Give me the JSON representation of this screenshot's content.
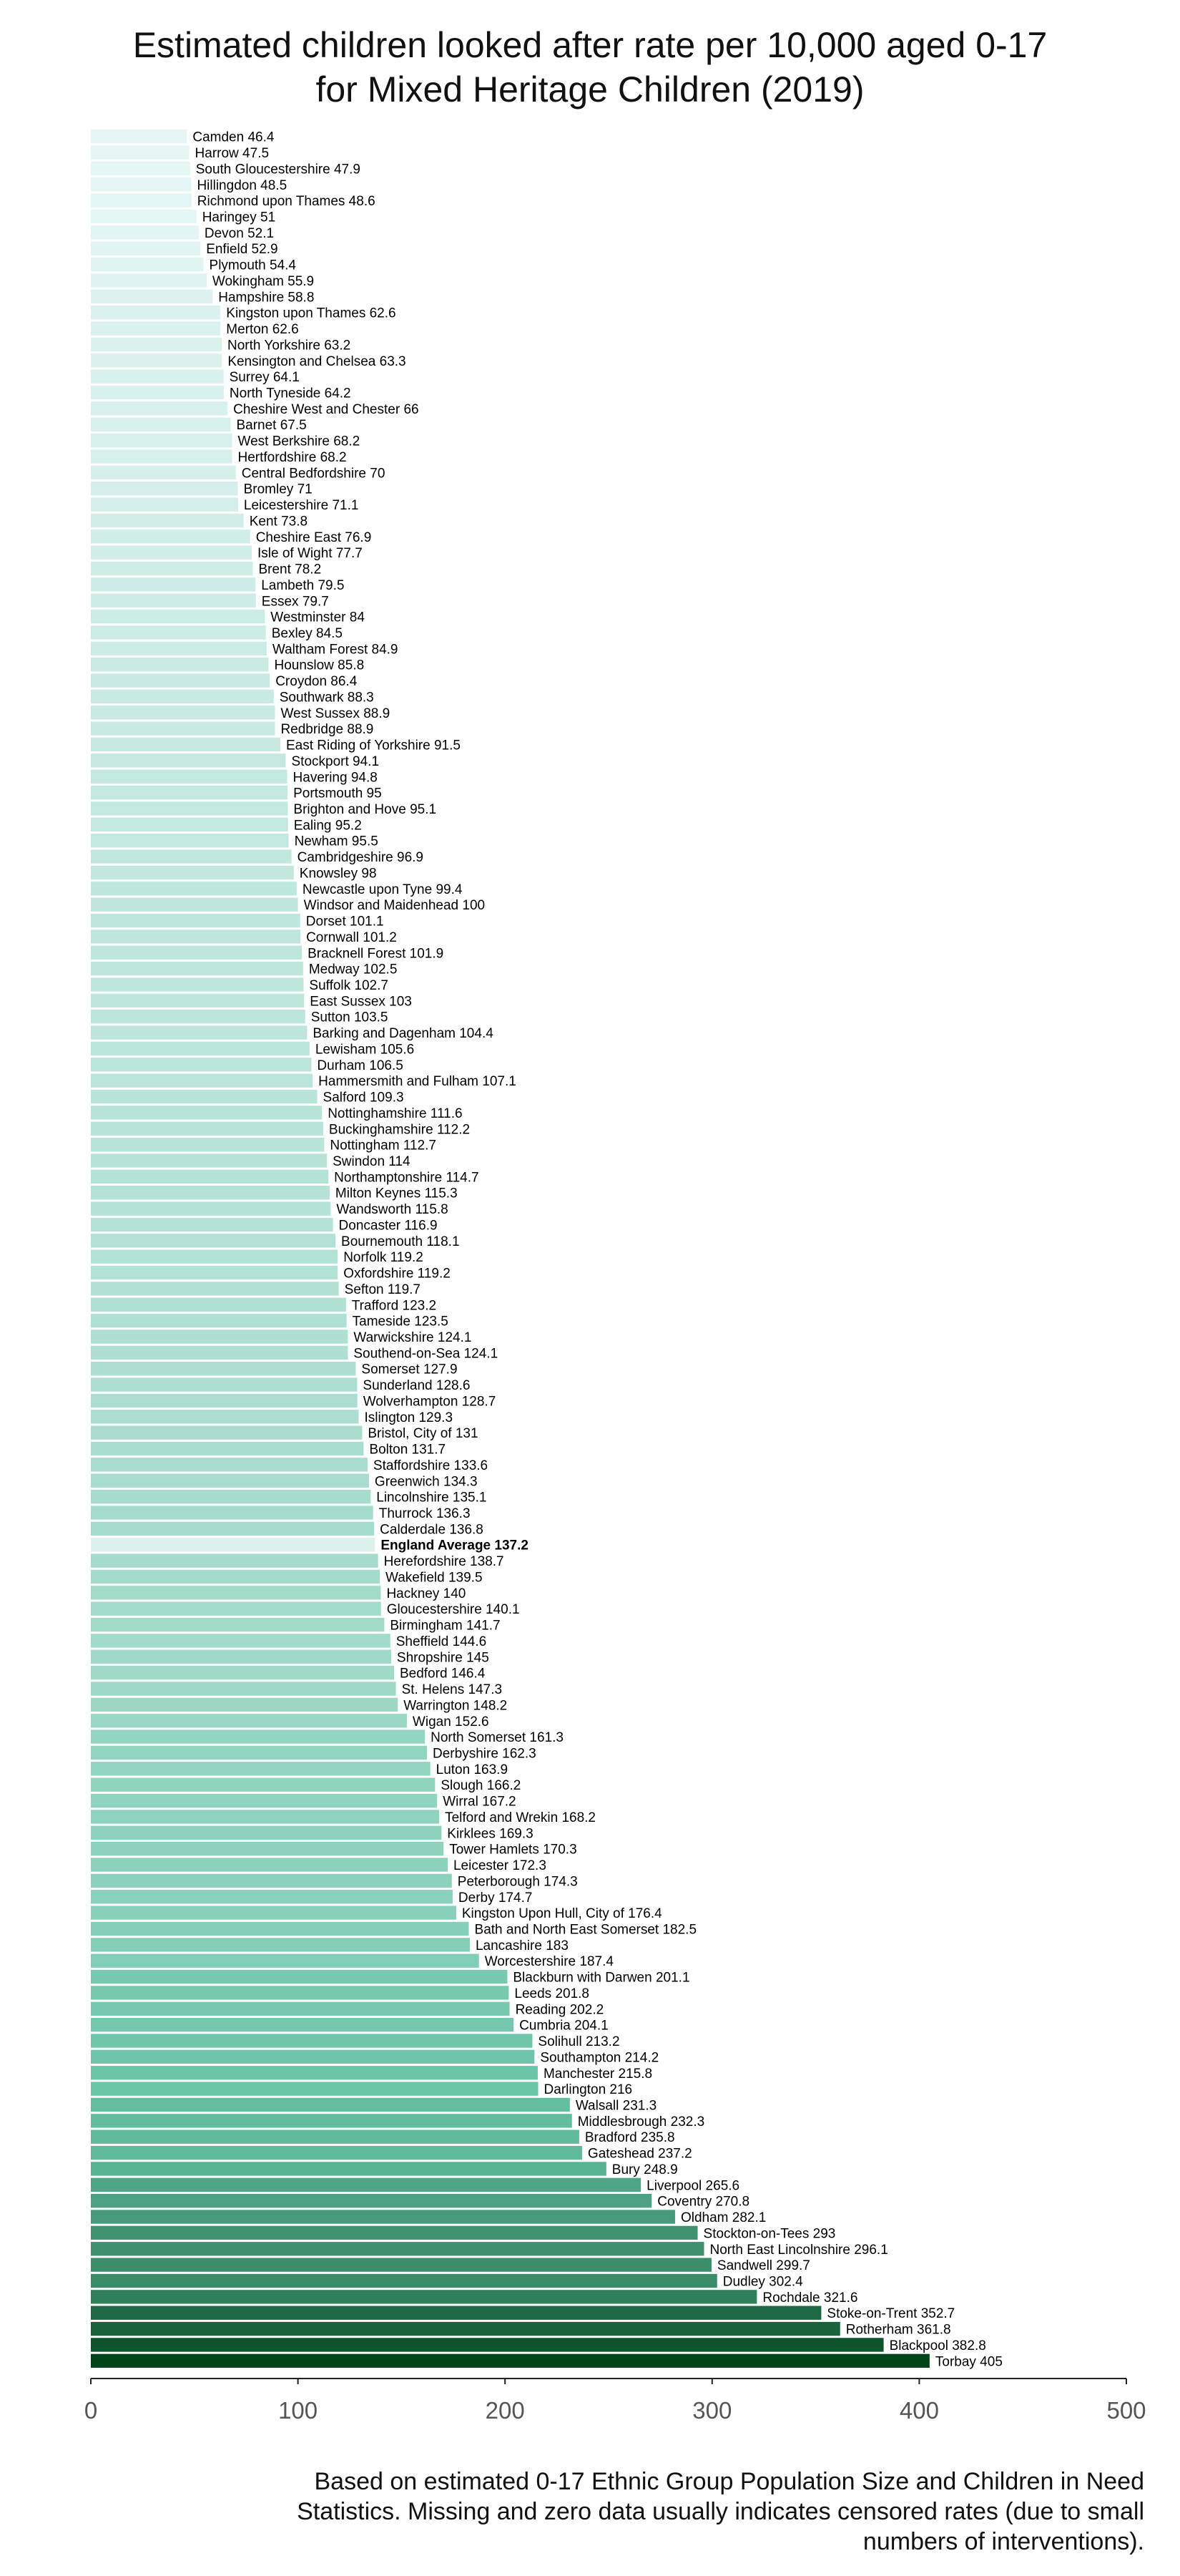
{
  "chart_data": {
    "type": "bar",
    "orientation": "horizontal",
    "title_lines": [
      "Estimated children looked after rate per 10,000 aged 0-17",
      "for Mixed Heritage Children (2019)"
    ],
    "xlim": [
      0,
      500
    ],
    "xticks": [
      "0",
      "100",
      "200",
      "300",
      "400",
      "500"
    ],
    "grid": false,
    "color_scale": {
      "low": "#e6f6f6",
      "high": "#00441b"
    },
    "highlight": "England Average",
    "bars": [
      {
        "label": "Camden",
        "value": 46.4
      },
      {
        "label": "Harrow",
        "value": 47.5
      },
      {
        "label": "South Gloucestershire",
        "value": 47.9
      },
      {
        "label": "Hillingdon",
        "value": 48.5
      },
      {
        "label": "Richmond upon Thames",
        "value": 48.6
      },
      {
        "label": "Haringey",
        "value": 51
      },
      {
        "label": "Devon",
        "value": 52.1
      },
      {
        "label": "Enfield",
        "value": 52.9
      },
      {
        "label": "Plymouth",
        "value": 54.4
      },
      {
        "label": "Wokingham",
        "value": 55.9
      },
      {
        "label": "Hampshire",
        "value": 58.8
      },
      {
        "label": "Kingston upon Thames",
        "value": 62.6
      },
      {
        "label": "Merton",
        "value": 62.6
      },
      {
        "label": "North Yorkshire",
        "value": 63.2
      },
      {
        "label": "Kensington and Chelsea",
        "value": 63.3
      },
      {
        "label": "Surrey",
        "value": 64.1
      },
      {
        "label": "North Tyneside",
        "value": 64.2
      },
      {
        "label": "Cheshire West and Chester",
        "value": 66
      },
      {
        "label": "Barnet",
        "value": 67.5
      },
      {
        "label": "West Berkshire",
        "value": 68.2
      },
      {
        "label": "Hertfordshire",
        "value": 68.2
      },
      {
        "label": "Central Bedfordshire",
        "value": 70
      },
      {
        "label": "Bromley",
        "value": 71
      },
      {
        "label": "Leicestershire",
        "value": 71.1
      },
      {
        "label": "Kent",
        "value": 73.8
      },
      {
        "label": "Cheshire East",
        "value": 76.9
      },
      {
        "label": "Isle of Wight",
        "value": 77.7
      },
      {
        "label": "Brent",
        "value": 78.2
      },
      {
        "label": "Lambeth",
        "value": 79.5
      },
      {
        "label": "Essex",
        "value": 79.7
      },
      {
        "label": "Westminster",
        "value": 84
      },
      {
        "label": "Bexley",
        "value": 84.5
      },
      {
        "label": "Waltham Forest",
        "value": 84.9
      },
      {
        "label": "Hounslow",
        "value": 85.8
      },
      {
        "label": "Croydon",
        "value": 86.4
      },
      {
        "label": "Southwark",
        "value": 88.3
      },
      {
        "label": "West Sussex",
        "value": 88.9
      },
      {
        "label": "Redbridge",
        "value": 88.9
      },
      {
        "label": "East Riding of Yorkshire",
        "value": 91.5
      },
      {
        "label": "Stockport",
        "value": 94.1
      },
      {
        "label": "Havering",
        "value": 94.8
      },
      {
        "label": "Portsmouth",
        "value": 95
      },
      {
        "label": "Brighton and Hove",
        "value": 95.1
      },
      {
        "label": "Ealing",
        "value": 95.2
      },
      {
        "label": "Newham",
        "value": 95.5
      },
      {
        "label": "Cambridgeshire",
        "value": 96.9
      },
      {
        "label": "Knowsley",
        "value": 98
      },
      {
        "label": "Newcastle upon Tyne",
        "value": 99.4
      },
      {
        "label": "Windsor and Maidenhead",
        "value": 100
      },
      {
        "label": "Dorset",
        "value": 101.1
      },
      {
        "label": "Cornwall",
        "value": 101.2
      },
      {
        "label": "Bracknell Forest",
        "value": 101.9
      },
      {
        "label": "Medway",
        "value": 102.5
      },
      {
        "label": "Suffolk",
        "value": 102.7
      },
      {
        "label": "East Sussex",
        "value": 103
      },
      {
        "label": "Sutton",
        "value": 103.5
      },
      {
        "label": "Barking and Dagenham",
        "value": 104.4
      },
      {
        "label": "Lewisham",
        "value": 105.6
      },
      {
        "label": "Durham",
        "value": 106.5
      },
      {
        "label": "Hammersmith and Fulham",
        "value": 107.1
      },
      {
        "label": "Salford",
        "value": 109.3
      },
      {
        "label": "Nottinghamshire",
        "value": 111.6
      },
      {
        "label": "Buckinghamshire",
        "value": 112.2
      },
      {
        "label": "Nottingham",
        "value": 112.7
      },
      {
        "label": "Swindon",
        "value": 114
      },
      {
        "label": "Northamptonshire",
        "value": 114.7
      },
      {
        "label": "Milton Keynes",
        "value": 115.3
      },
      {
        "label": "Wandsworth",
        "value": 115.8
      },
      {
        "label": "Doncaster",
        "value": 116.9
      },
      {
        "label": "Bournemouth",
        "value": 118.1
      },
      {
        "label": "Norfolk",
        "value": 119.2
      },
      {
        "label": "Oxfordshire",
        "value": 119.2
      },
      {
        "label": "Sefton",
        "value": 119.7
      },
      {
        "label": "Trafford",
        "value": 123.2
      },
      {
        "label": "Tameside",
        "value": 123.5
      },
      {
        "label": "Warwickshire",
        "value": 124.1
      },
      {
        "label": "Southend-on-Sea",
        "value": 124.1
      },
      {
        "label": "Somerset",
        "value": 127.9
      },
      {
        "label": "Sunderland",
        "value": 128.6
      },
      {
        "label": "Wolverhampton",
        "value": 128.7
      },
      {
        "label": "Islington",
        "value": 129.3
      },
      {
        "label": "Bristol, City of",
        "value": 131
      },
      {
        "label": "Bolton",
        "value": 131.7
      },
      {
        "label": "Staffordshire",
        "value": 133.6
      },
      {
        "label": "Greenwich",
        "value": 134.3
      },
      {
        "label": "Lincolnshire",
        "value": 135.1
      },
      {
        "label": "Thurrock",
        "value": 136.3
      },
      {
        "label": "Calderdale",
        "value": 136.8
      },
      {
        "label": "England Average",
        "value": 137.2
      },
      {
        "label": "Herefordshire",
        "value": 138.7
      },
      {
        "label": "Wakefield",
        "value": 139.5
      },
      {
        "label": "Hackney",
        "value": 140
      },
      {
        "label": "Gloucestershire",
        "value": 140.1
      },
      {
        "label": "Birmingham",
        "value": 141.7
      },
      {
        "label": "Sheffield",
        "value": 144.6
      },
      {
        "label": "Shropshire",
        "value": 145
      },
      {
        "label": "Bedford",
        "value": 146.4
      },
      {
        "label": "St. Helens",
        "value": 147.3
      },
      {
        "label": "Warrington",
        "value": 148.2
      },
      {
        "label": "Wigan",
        "value": 152.6
      },
      {
        "label": "North Somerset",
        "value": 161.3
      },
      {
        "label": "Derbyshire",
        "value": 162.3
      },
      {
        "label": "Luton",
        "value": 163.9
      },
      {
        "label": "Slough",
        "value": 166.2
      },
      {
        "label": "Wirral",
        "value": 167.2
      },
      {
        "label": "Telford and Wrekin",
        "value": 168.2
      },
      {
        "label": "Kirklees",
        "value": 169.3
      },
      {
        "label": "Tower Hamlets",
        "value": 170.3
      },
      {
        "label": "Leicester",
        "value": 172.3
      },
      {
        "label": "Peterborough",
        "value": 174.3
      },
      {
        "label": "Derby",
        "value": 174.7
      },
      {
        "label": "Kingston Upon Hull, City of",
        "value": 176.4
      },
      {
        "label": "Bath and North East Somerset",
        "value": 182.5
      },
      {
        "label": "Lancashire",
        "value": 183
      },
      {
        "label": "Worcestershire",
        "value": 187.4
      },
      {
        "label": "Blackburn with Darwen",
        "value": 201.1
      },
      {
        "label": "Leeds",
        "value": 201.8
      },
      {
        "label": "Reading",
        "value": 202.2
      },
      {
        "label": "Cumbria",
        "value": 204.1
      },
      {
        "label": "Solihull",
        "value": 213.2
      },
      {
        "label": "Southampton",
        "value": 214.2
      },
      {
        "label": "Manchester",
        "value": 215.8
      },
      {
        "label": "Darlington",
        "value": 216
      },
      {
        "label": "Walsall",
        "value": 231.3
      },
      {
        "label": "Middlesbrough",
        "value": 232.3
      },
      {
        "label": "Bradford",
        "value": 235.8
      },
      {
        "label": "Gateshead",
        "value": 237.2
      },
      {
        "label": "Bury",
        "value": 248.9
      },
      {
        "label": "Liverpool",
        "value": 265.6
      },
      {
        "label": "Coventry",
        "value": 270.8
      },
      {
        "label": "Oldham",
        "value": 282.1
      },
      {
        "label": "Stockton-on-Tees",
        "value": 293
      },
      {
        "label": "North East Lincolnshire",
        "value": 296.1
      },
      {
        "label": "Sandwell",
        "value": 299.7
      },
      {
        "label": "Dudley",
        "value": 302.4
      },
      {
        "label": "Rochdale",
        "value": 321.6
      },
      {
        "label": "Stoke-on-Trent",
        "value": 352.7
      },
      {
        "label": "Rotherham",
        "value": 361.8
      },
      {
        "label": "Blackpool",
        "value": 382.8
      },
      {
        "label": "Torbay",
        "value": 405
      }
    ]
  },
  "footnote_lines": [
    "Based on estimated 0-17 Ethnic Group Population Size and Children in Need",
    "Statistics. Missing and zero data usually indicates censored rates (due to small",
    "numbers of interventions)."
  ]
}
